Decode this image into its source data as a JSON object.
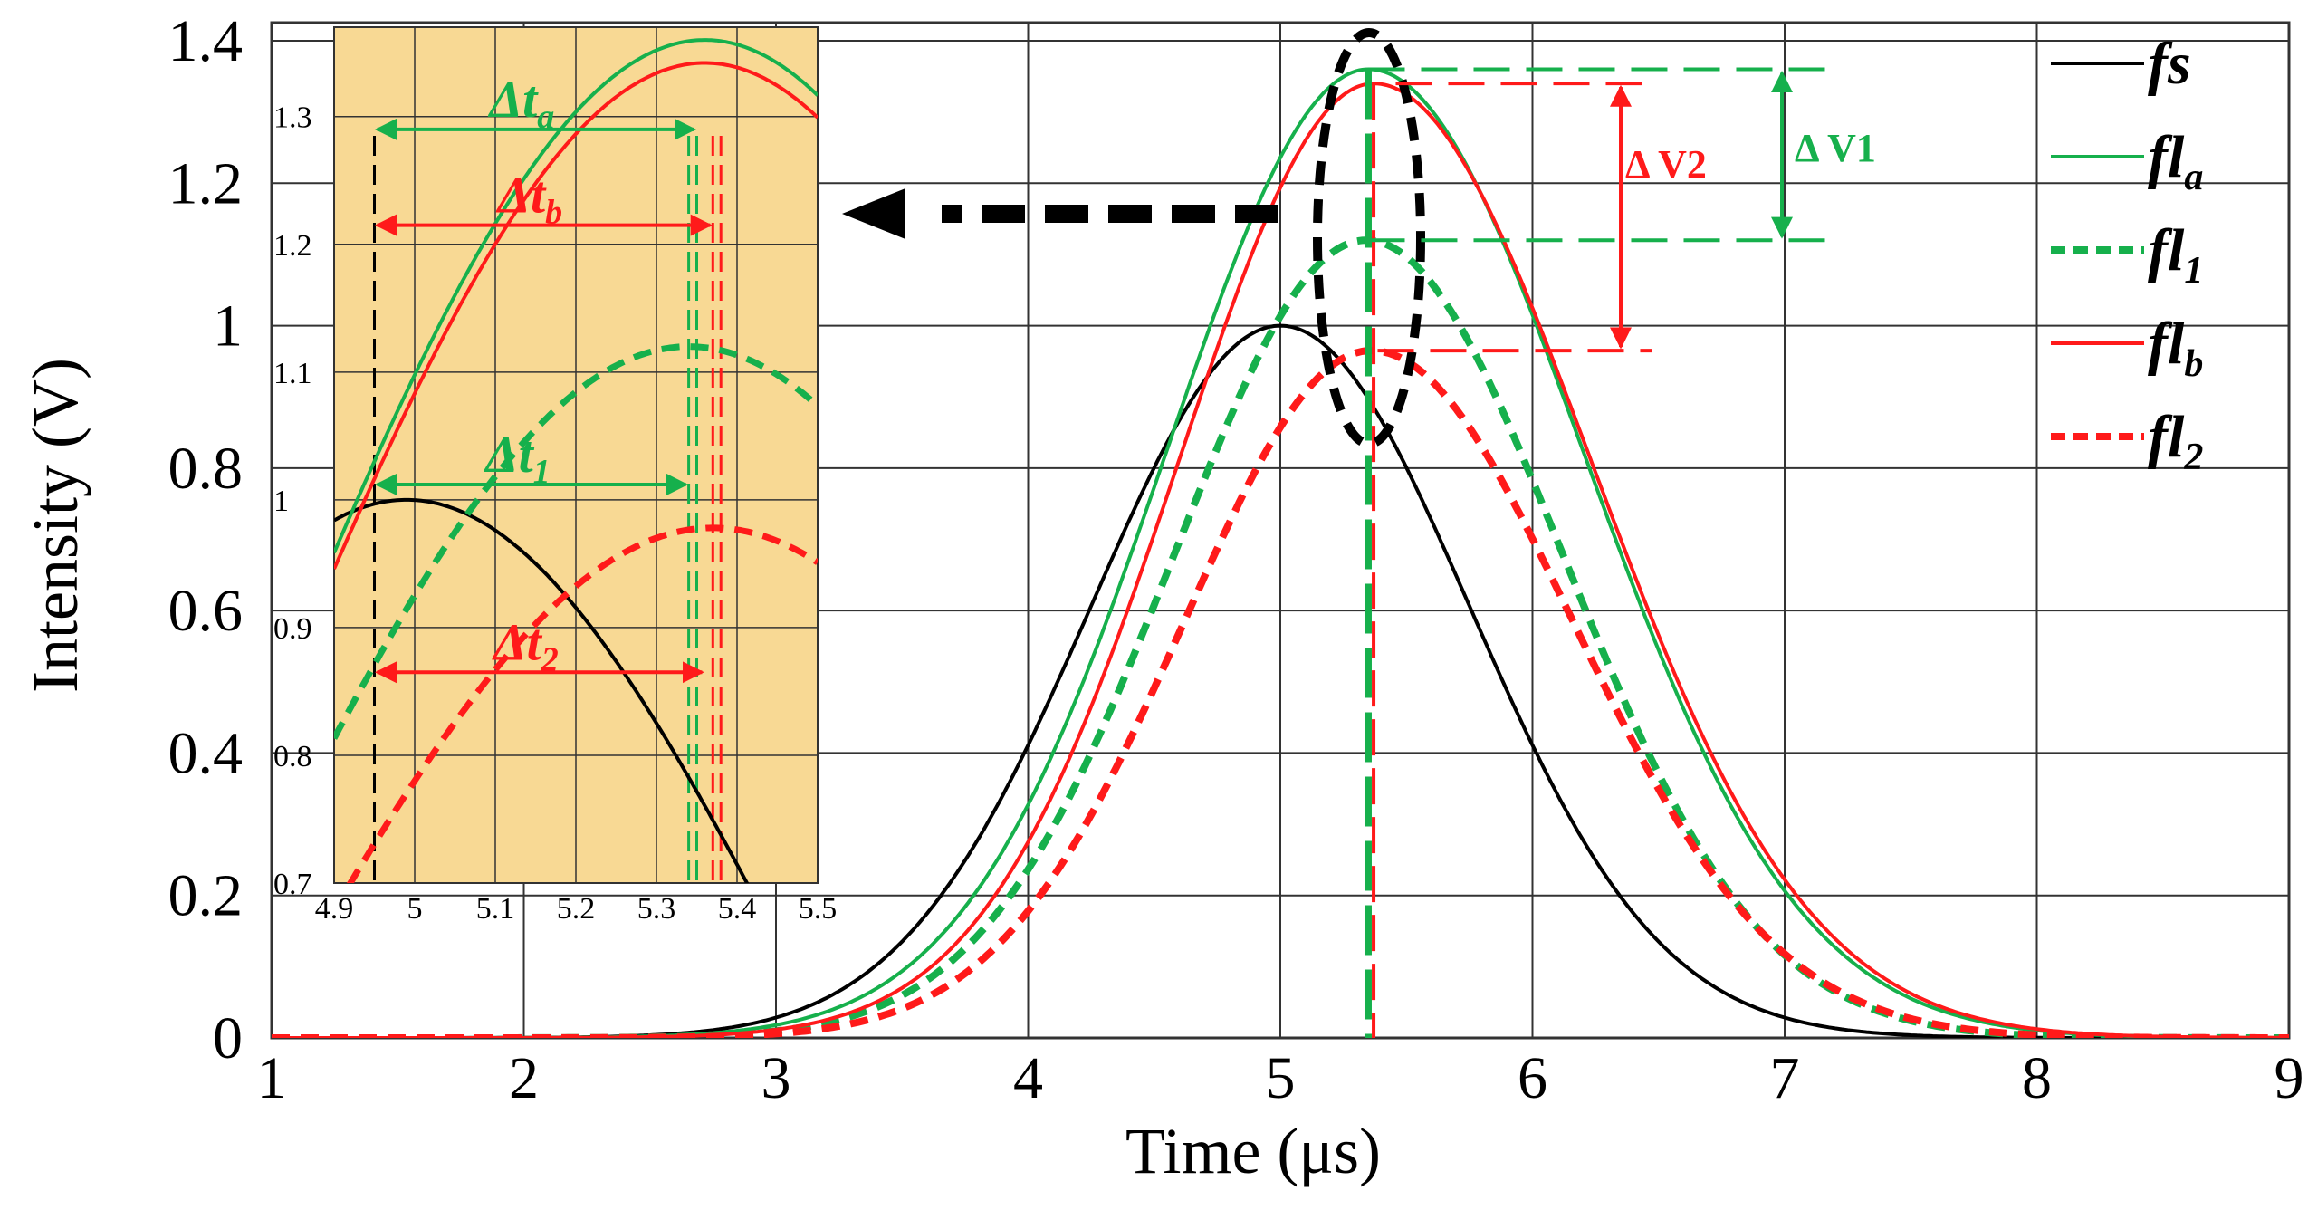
{
  "chart_data": [
    {
      "type": "line",
      "xlabel": "Time (μs)",
      "ylabel": "Intensity (V)",
      "xlim": [
        1,
        9
      ],
      "ylim": [
        0,
        1.4
      ],
      "xticks": [
        "1",
        "2",
        "3",
        "4",
        "5",
        "6",
        "7",
        "8",
        "9"
      ],
      "yticks": [
        "0",
        "0.2",
        "0.4",
        "0.6",
        "0.8",
        "1",
        "1.2",
        "1.4"
      ],
      "grid": true,
      "legend_position": "top-right",
      "series": [
        {
          "name": "fs",
          "label_main": "fs",
          "label_sub": "",
          "color": "#000000",
          "style": "solid",
          "peak_x": 5.0,
          "peak_y": 1.0,
          "sigma_left": 0.75,
          "sigma_right": 0.75
        },
        {
          "name": "fl_a",
          "label_main": "fl",
          "label_sub": "a",
          "color": "#16b04c",
          "style": "solid",
          "peak_x": 5.35,
          "peak_y": 1.36,
          "sigma_left": 0.8,
          "sigma_right": 0.85
        },
        {
          "name": "fl_1",
          "label_main": "fl",
          "label_sub": "1",
          "color": "#16b04c",
          "style": "dotted",
          "peak_x": 5.34,
          "peak_y": 1.12,
          "sigma_left": 0.76,
          "sigma_right": 0.78
        },
        {
          "name": "fl_b",
          "label_main": "fl",
          "label_sub": "b",
          "color": "#ff1a1a",
          "style": "solid",
          "peak_x": 5.37,
          "peak_y": 1.34,
          "sigma_left": 0.77,
          "sigma_right": 0.86
        },
        {
          "name": "fl_2",
          "label_main": "fl",
          "label_sub": "2",
          "color": "#ff1a1a",
          "style": "dotted",
          "peak_x": 5.36,
          "peak_y": 0.965,
          "sigma_left": 0.74,
          "sigma_right": 0.8
        }
      ],
      "annotations": [
        {
          "id": "dv1",
          "text": "Δ V1",
          "color": "#16b04c",
          "from": 1.12,
          "to": 1.36
        },
        {
          "id": "dv2",
          "text": "Δ V2",
          "color": "#ff1a1a",
          "from": 0.965,
          "to": 1.34
        }
      ]
    },
    {
      "type": "line",
      "role": "inset",
      "xlim": [
        4.9,
        5.5
      ],
      "ylim": [
        0.7,
        1.37
      ],
      "xticks": [
        "4.9",
        "5",
        "5.1",
        "5.2",
        "5.3",
        "5.4",
        "5.5"
      ],
      "yticks": [
        "0.7",
        "0.8",
        "0.9",
        "1",
        "1.1",
        "1.2",
        "1.3"
      ],
      "background": "#f8d994",
      "series": [
        {
          "name": "fs",
          "color": "#000000",
          "style": "solid",
          "peak_x": 4.99,
          "peak_y": 1.0,
          "sigma": 0.5
        },
        {
          "name": "fl_a",
          "color": "#16b04c",
          "style": "solid",
          "peak_x": 5.36,
          "peak_y": 1.36,
          "sigma": 0.55
        },
        {
          "name": "fl_b",
          "color": "#ff1a1a",
          "style": "solid",
          "peak_x": 5.36,
          "peak_y": 1.342,
          "sigma": 0.55
        },
        {
          "name": "fl_1",
          "color": "#16b04c",
          "style": "dotted",
          "peak_x": 5.34,
          "peak_y": 1.12,
          "sigma": 0.55
        },
        {
          "name": "fl_2",
          "color": "#ff1a1a",
          "style": "dotted",
          "peak_x": 5.37,
          "peak_y": 0.978,
          "sigma": 0.55
        }
      ],
      "reference_lines": [
        {
          "x": 4.95,
          "color": "#000000"
        },
        {
          "x": 5.34,
          "color": "#16b04c"
        },
        {
          "x": 5.35,
          "color": "#16b04c"
        },
        {
          "x": 5.37,
          "color": "#ff1a1a"
        },
        {
          "x": 5.38,
          "color": "#ff1a1a"
        }
      ],
      "annotations": [
        {
          "id": "dta",
          "main": "Δt",
          "sub": "a",
          "color": "#16b04c",
          "from": 4.95,
          "to": 5.35,
          "arrow_y": 1.29
        },
        {
          "id": "dtb",
          "main": "Δt",
          "sub": "b",
          "color": "#ff1a1a",
          "from": 4.95,
          "to": 5.37,
          "arrow_y": 1.215
        },
        {
          "id": "dt1",
          "main": "Δt",
          "sub": "1",
          "color": "#16b04c",
          "from": 4.95,
          "to": 5.34,
          "arrow_y": 1.012
        },
        {
          "id": "dt2",
          "main": "Δt",
          "sub": "2",
          "color": "#ff1a1a",
          "from": 4.95,
          "to": 5.36,
          "arrow_y": 0.865
        }
      ]
    }
  ]
}
